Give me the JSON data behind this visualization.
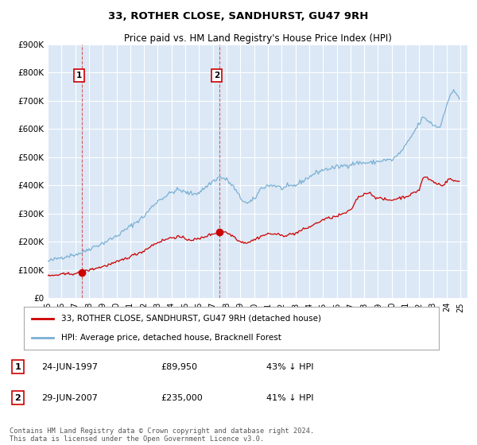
{
  "title": "33, ROTHER CLOSE, SANDHURST, GU47 9RH",
  "subtitle": "Price paid vs. HM Land Registry's House Price Index (HPI)",
  "ylim": [
    0,
    900000
  ],
  "ytick_labels": [
    "£0",
    "£100K",
    "£200K",
    "£300K",
    "£400K",
    "£500K",
    "£600K",
    "£700K",
    "£800K",
    "£900K"
  ],
  "ytick_values": [
    0,
    100000,
    200000,
    300000,
    400000,
    500000,
    600000,
    700000,
    800000,
    900000
  ],
  "red_color": "#cc0000",
  "blue_color": "#7ab0d4",
  "dashed_color": "#cc0000",
  "bg_color": "#dce8f5",
  "grid_color": "#ffffff",
  "sale1_date": 1997.48,
  "sale1_price": 89950,
  "sale1_label": "1",
  "sale2_date": 2007.48,
  "sale2_price": 235000,
  "sale2_label": "2",
  "legend_red": "33, ROTHER CLOSE, SANDHURST, GU47 9RH (detached house)",
  "legend_blue": "HPI: Average price, detached house, Bracknell Forest",
  "table_entries": [
    {
      "num": "1",
      "date": "24-JUN-1997",
      "price": "£89,950",
      "hpi": "43% ↓ HPI"
    },
    {
      "num": "2",
      "date": "29-JUN-2007",
      "price": "£235,000",
      "hpi": "41% ↓ HPI"
    }
  ],
  "footnote": "Contains HM Land Registry data © Crown copyright and database right 2024.\nThis data is licensed under the Open Government Licence v3.0.",
  "xlim_start": 1995.0,
  "xlim_end": 2025.5,
  "xtick_years": [
    1995,
    1996,
    1997,
    1998,
    1999,
    2000,
    2001,
    2002,
    2003,
    2004,
    2005,
    2006,
    2007,
    2008,
    2009,
    2010,
    2011,
    2012,
    2013,
    2014,
    2015,
    2016,
    2017,
    2018,
    2019,
    2020,
    2021,
    2022,
    2023,
    2024,
    2025
  ]
}
